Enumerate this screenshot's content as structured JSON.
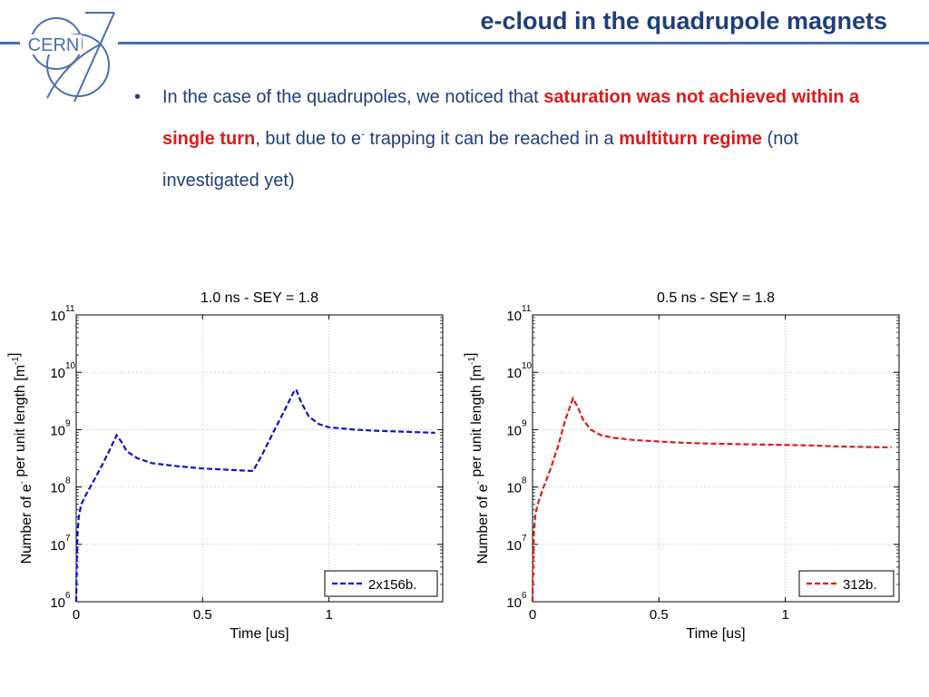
{
  "header": {
    "title": "e-cloud in the quadrupole magnets",
    "logo_text": "CERN"
  },
  "bullet": {
    "part1": "In the case of the quadrupoles, we noticed that ",
    "red1": "saturation was not achieved within  a single turn",
    "part2": ", but due to e",
    "sup": "-",
    "part3": " trapping  it can be reached in a ",
    "red2": "multiturn regime",
    "part4": " (not investigated yet)"
  },
  "colors": {
    "title": "#1f3f7a",
    "accent_line": "#4a6fb0",
    "highlight": "#e01818",
    "series_left": "#1010cc",
    "series_right": "#e01818"
  },
  "chart_data": [
    {
      "type": "line",
      "title": "1.0 ns - SEY = 1.8",
      "xlabel": "Time [us]",
      "ylabel": "Number of e",
      "ylabel_sup1": "-",
      "ylabel_mid": " per unit length [m",
      "ylabel_sup2": "-1",
      "ylabel_end": "]",
      "xlim": [
        0,
        1.45
      ],
      "ylim": [
        1000000,
        100000000000
      ],
      "yscale": "log",
      "grid": true,
      "legend_position": "bottom-right",
      "xticks": [
        0,
        0.5,
        1
      ],
      "xtick_labels": [
        "0",
        "0.5",
        "1"
      ],
      "yticks_exp": [
        6,
        7,
        8,
        9,
        10,
        11
      ],
      "ytick_base": "10",
      "series": [
        {
          "name": "2x156b.",
          "color": "#1010cc",
          "x": [
            0,
            0.002,
            0.005,
            0.01,
            0.02,
            0.04,
            0.07,
            0.1,
            0.13,
            0.16,
            0.18,
            0.2,
            0.24,
            0.3,
            0.4,
            0.5,
            0.6,
            0.7,
            0.74,
            0.78,
            0.82,
            0.86,
            0.87,
            0.89,
            0.92,
            0.96,
            1.0,
            1.1,
            1.2,
            1.3,
            1.42
          ],
          "y": [
            1000000,
            5000000,
            15000000,
            30000000,
            50000000,
            75000000,
            130000000,
            230000000,
            420000000,
            800000000,
            600000000,
            420000000,
            320000000,
            260000000,
            230000000,
            210000000,
            200000000,
            190000000,
            400000000,
            900000000,
            2000000000,
            4500000000,
            5000000000,
            3000000000,
            1700000000,
            1250000000,
            1100000000,
            1000000000,
            950000000,
            920000000,
            880000000
          ]
        }
      ]
    },
    {
      "type": "line",
      "title": "0.5 ns - SEY = 1.8",
      "xlabel": "Time [us]",
      "ylabel": "Number of e",
      "ylabel_sup1": "-",
      "ylabel_mid": " per unit length [m",
      "ylabel_sup2": "-1",
      "ylabel_end": "]",
      "xlim": [
        0,
        1.45
      ],
      "ylim": [
        1000000,
        100000000000
      ],
      "yscale": "log",
      "grid": true,
      "legend_position": "bottom-right",
      "xticks": [
        0,
        0.5,
        1
      ],
      "xtick_labels": [
        "0",
        "0.5",
        "1"
      ],
      "yticks_exp": [
        6,
        7,
        8,
        9,
        10,
        11
      ],
      "ytick_base": "10",
      "series": [
        {
          "name": "312b.",
          "color": "#e01818",
          "x": [
            0,
            0.002,
            0.005,
            0.01,
            0.02,
            0.04,
            0.07,
            0.1,
            0.13,
            0.16,
            0.18,
            0.2,
            0.23,
            0.27,
            0.32,
            0.4,
            0.5,
            0.6,
            0.7,
            0.8,
            0.9,
            1.0,
            1.1,
            1.2,
            1.3,
            1.42
          ],
          "y": [
            1000000,
            5000000,
            15000000,
            30000000,
            50000000,
            90000000,
            200000000,
            500000000,
            1500000000,
            3500000000,
            2400000000,
            1500000000,
            1000000000,
            800000000,
            720000000,
            660000000,
            620000000,
            590000000,
            570000000,
            560000000,
            550000000,
            540000000,
            530000000,
            510000000,
            500000000,
            490000000
          ]
        }
      ]
    }
  ]
}
